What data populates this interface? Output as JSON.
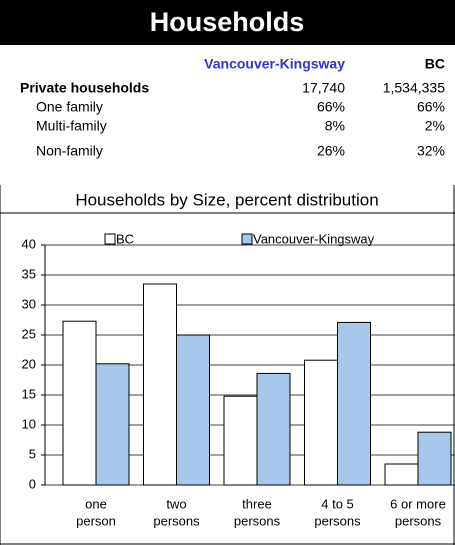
{
  "header": {
    "title": "Households"
  },
  "table": {
    "columns": [
      "Vancouver-Kingsway",
      "BC"
    ],
    "rows": [
      [
        "Private households",
        "17,740",
        "1,534,335"
      ],
      [
        "One family",
        "66%",
        "66%"
      ],
      [
        "Multi-family",
        "8%",
        "2%"
      ],
      [
        "Non-family",
        "26%",
        "32%"
      ]
    ]
  },
  "chart_data": {
    "type": "bar",
    "title": "Households by Size, percent distribution",
    "categories": [
      [
        "one",
        "person"
      ],
      [
        "two",
        "persons"
      ],
      [
        "three",
        "persons"
      ],
      [
        "4 to 5",
        "persons"
      ],
      [
        "6 or  more",
        "persons"
      ]
    ],
    "series": [
      {
        "name": "BC",
        "color": "#ffffff",
        "values": [
          27.3,
          33.5,
          14.8,
          20.8,
          3.5
        ]
      },
      {
        "name": "Vancouver-Kingsway",
        "color": "#a6c8ec",
        "values": [
          20.2,
          25,
          18.6,
          27.1,
          8.8
        ]
      }
    ],
    "ylim": [
      0,
      40
    ],
    "yticks": [
      0,
      5,
      10,
      15,
      20,
      25,
      30,
      35,
      40
    ],
    "grid": true,
    "legend": "top"
  }
}
